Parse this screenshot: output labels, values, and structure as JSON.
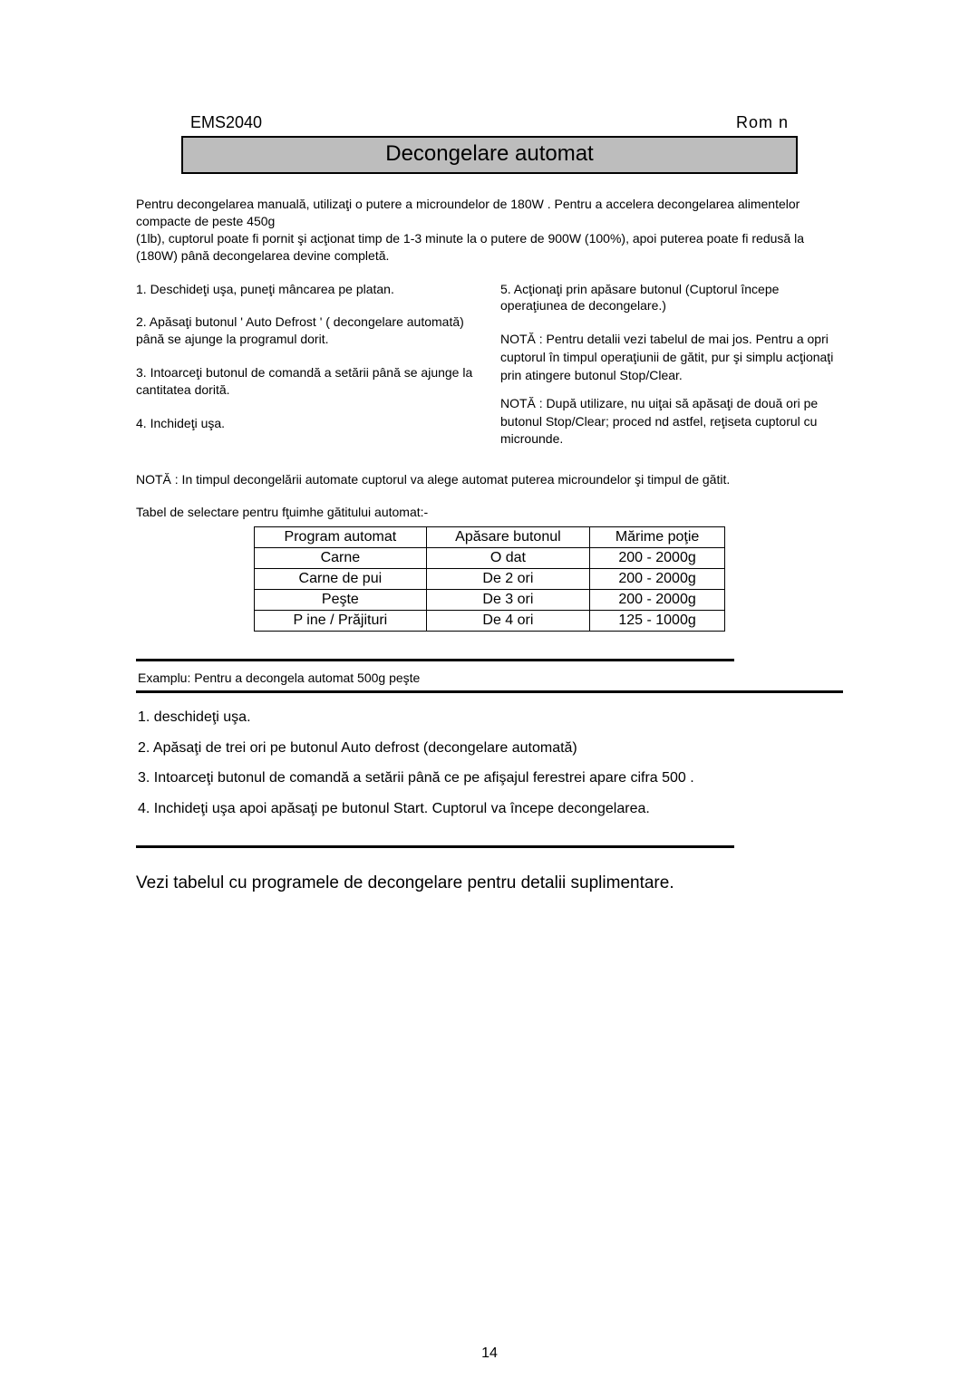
{
  "header": {
    "model": "EMS2040",
    "lang": "Rom n"
  },
  "title": "Decongelare automat",
  "intro": {
    "p1": "Pentru decongelarea manuală, utilizaţi o putere a microundelor de 180W . Pentru a accelera decongelarea alimentelor compacte de peste  450g",
    "p2": "(1lb), cuptorul poate fi pornit şi acţionat timp de 1-3 minute la o putere de 900W (100%), apoi puterea poate fi redusă la (180W) până  decongelarea devine completă."
  },
  "left_steps": {
    "s1": "1. Deschideţi uşa, puneţi mâncarea pe platan.",
    "s2": "2. Apăsaţi butonul  ' Auto Defrost ' ( decongelare automată) până se ajunge la programul dorit.",
    "s3": "3. Intoarceţi butonul de comandă a setării până se ajunge la cantitatea dorită.",
    "s4": "4. Inchideţi uşa."
  },
  "right_steps": {
    "s5": "5. Acţionaţi prin apăsare butonul (Cuptorul începe operaţiunea de decongelare.)",
    "n1": "NOTĂ  : Pentru detalii vezi tabelul de mai jos. Pentru a opri cuptorul în timpul operaţiunii de gătit, pur şi simplu acţionaţi prin atingere butonul Stop/Clear.",
    "n2": "NOTĂ  : După  utilizare, nu uiţai să  apăsaţi de două  ori pe butonul Stop/Clear; proced nd astfel, reţiseta cuptorul cu microunde."
  },
  "note3": "NOTĂ  : In timpul decongelării automate cuptorul va alege automat puterea microundelor şi timpul de gătit.",
  "table": {
    "caption": "Tabel de selectare pentru fţuimhe gătitului automat:-",
    "headers": {
      "c1": "Program automat",
      "c2": "Apăsare  butonul",
      "c3": "Mărime poţie"
    },
    "rows": [
      {
        "c1": "Carne",
        "c2": "O dat",
        "c3": "200 - 2000g"
      },
      {
        "c1": "Carne de pui",
        "c2": "De 2 ori",
        "c3": "200 - 2000g"
      },
      {
        "c1": "Peşte",
        "c2": "De 3 ori",
        "c3": "200 - 2000g"
      },
      {
        "c1": "P ine / Prăjituri",
        "c2": "De 4 ori",
        "c3": "125 - 1000g"
      }
    ]
  },
  "example": {
    "title": "Examplu: Pentru a decongela automat 500g peşte",
    "s1": "1. deschideţi uşa.",
    "s2": "2. Apăsaţi de trei ori pe butonul Auto defrost (decongelare automată)",
    "s3": "3. Intoarceţi butonul de comandă a setării până ce pe afişajul ferestrei apare cifra 500 .",
    "s4": "4. Inchideţi uşa apoi apăsaţi pe butonul Start. Cuptorul va începe decongelarea."
  },
  "final_note": "Vezi tabelul cu programele de decongelare pentru detalii suplimentare.",
  "page_number": "14"
}
